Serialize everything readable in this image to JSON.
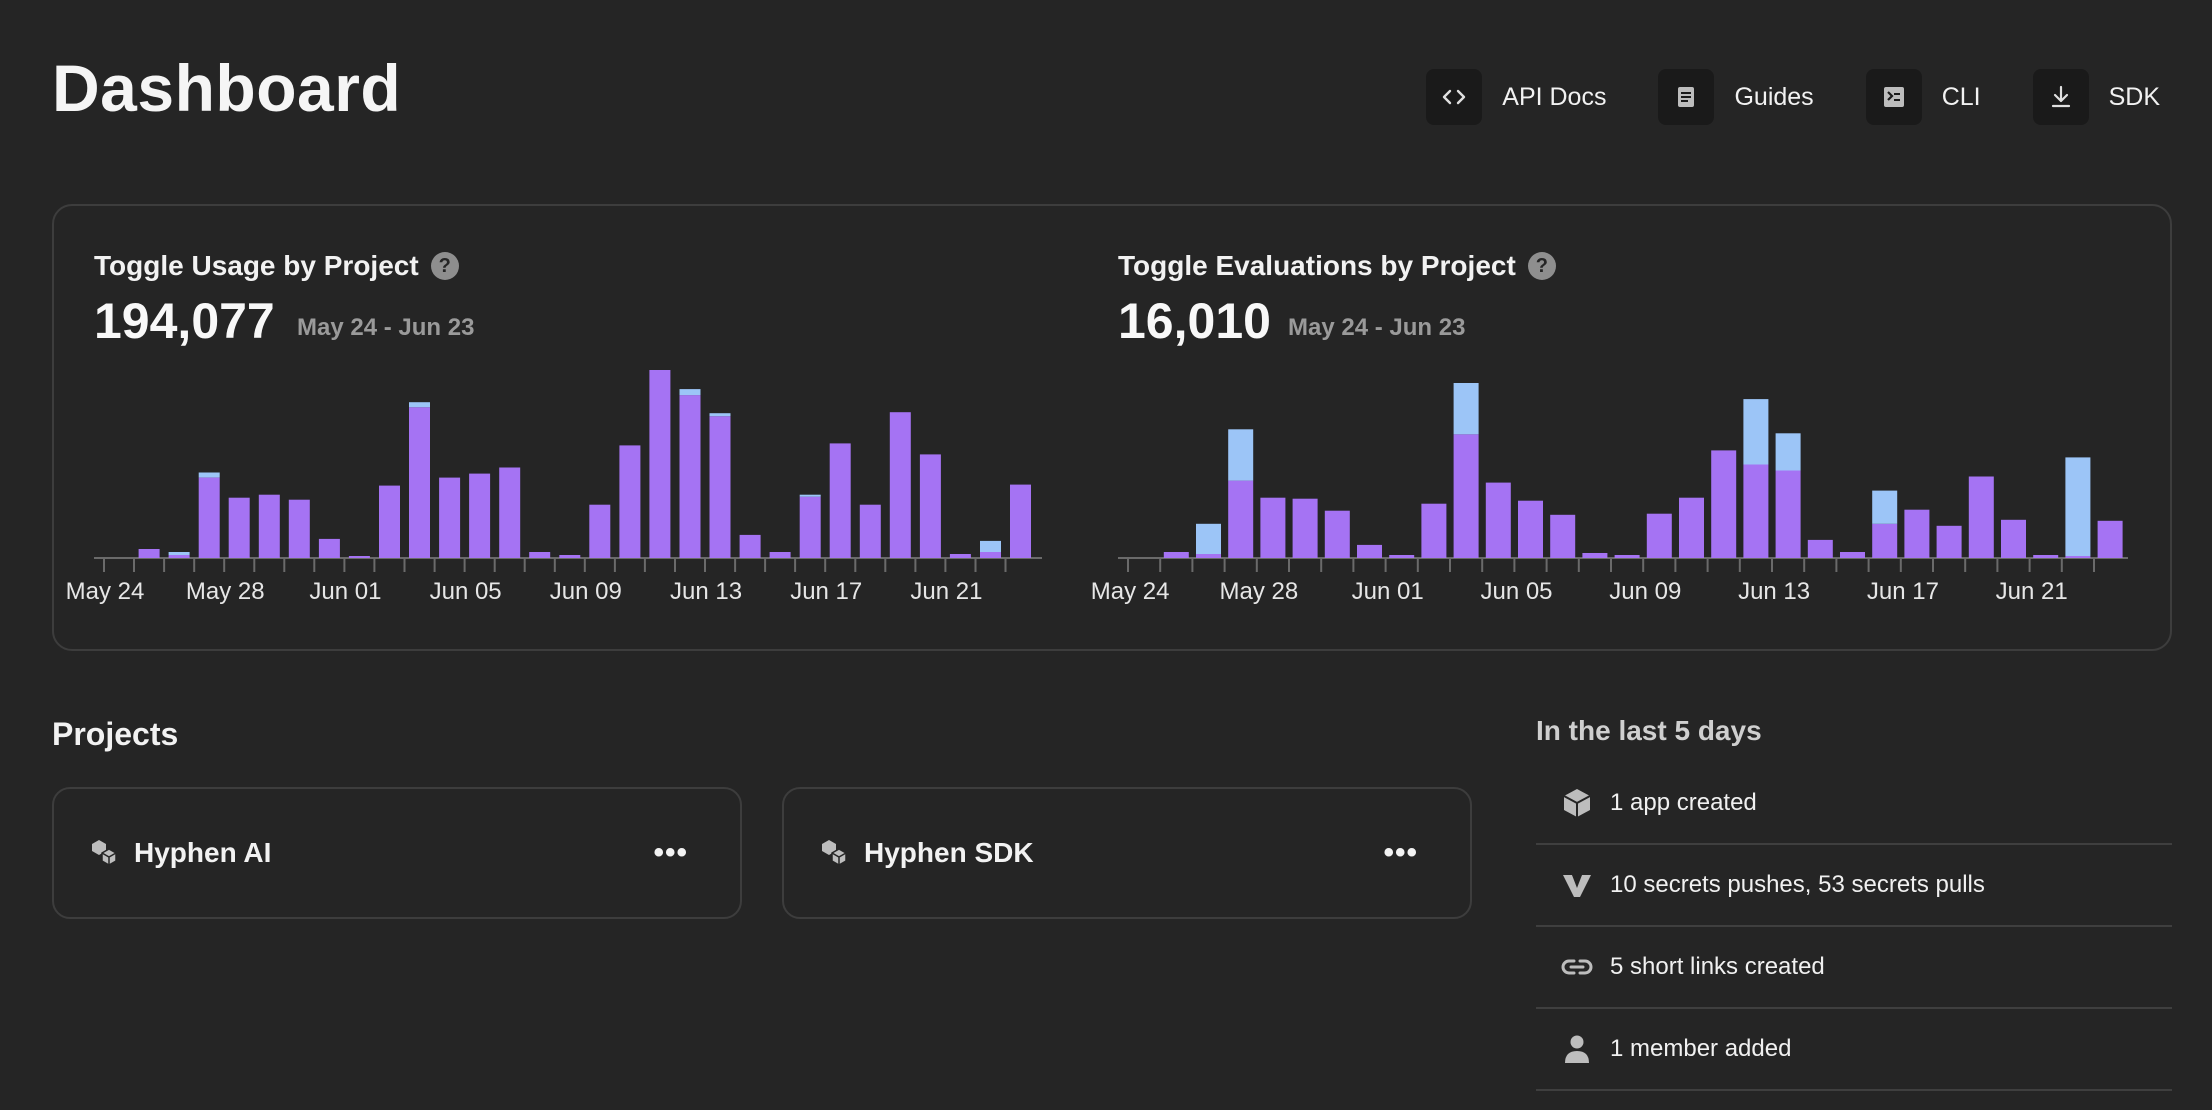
{
  "page": {
    "title": "Dashboard"
  },
  "top_links": [
    {
      "label": "API Docs",
      "icon": "code-icon"
    },
    {
      "label": "Guides",
      "icon": "document-icon"
    },
    {
      "label": "CLI",
      "icon": "terminal-icon"
    },
    {
      "label": "SDK",
      "icon": "download-icon"
    }
  ],
  "colors": {
    "primary_series": "#a573f3",
    "secondary_series": "#9cc5f7",
    "background": "#252525"
  },
  "chart_data": [
    {
      "type": "bar",
      "title": "Toggle Usage by Project",
      "total": "194,077",
      "date_range": "May 24 - Jun 23",
      "tick_labels": [
        "May 24",
        "May 28",
        "Jun 01",
        "Jun 05",
        "Jun 09",
        "Jun 13",
        "Jun 17",
        "Jun 21"
      ],
      "stacked": true,
      "series": [
        {
          "values": [
            0,
            9,
            3,
            80,
            60,
            63,
            58,
            19,
            2,
            72,
            150,
            80,
            84,
            90,
            6,
            3,
            53,
            112,
            187,
            162,
            141,
            23,
            6,
            61,
            114,
            53,
            145,
            103,
            4,
            6,
            73
          ]
        },
        {
          "values": [
            0,
            0,
            3,
            5,
            0,
            0,
            0,
            0,
            0,
            0,
            5,
            0,
            0,
            0,
            0,
            0,
            0,
            0,
            0,
            6,
            3,
            0,
            0,
            2,
            0,
            0,
            0,
            0,
            0,
            11,
            0
          ]
        }
      ]
    },
    {
      "type": "bar",
      "title": "Toggle Evaluations by Project",
      "total": "16,010",
      "date_range": "May 24 - Jun 23",
      "tick_labels": [
        "May 24",
        "May 28",
        "Jun 01",
        "Jun 05",
        "Jun 09",
        "Jun 13",
        "Jun 17",
        "Jun 21"
      ],
      "stacked": true,
      "series": [
        {
          "values": [
            0,
            6,
            4,
            77,
            60,
            59,
            47,
            13,
            3,
            54,
            123,
            75,
            57,
            43,
            5,
            3,
            44,
            60,
            107,
            93,
            87,
            18,
            6,
            34,
            48,
            32,
            81,
            38,
            3,
            2,
            37
          ]
        },
        {
          "values": [
            0,
            0,
            30,
            51,
            0,
            0,
            0,
            0,
            0,
            0,
            51,
            0,
            0,
            0,
            0,
            0,
            0,
            0,
            0,
            65,
            37,
            0,
            0,
            33,
            0,
            0,
            0,
            0,
            0,
            98,
            0
          ]
        }
      ]
    }
  ],
  "projects_section": {
    "title": "Projects",
    "items": [
      {
        "name": "Hyphen AI",
        "more": "•••"
      },
      {
        "name": "Hyphen SDK",
        "more": "•••"
      }
    ]
  },
  "activity": {
    "title": "In the last 5 days",
    "items": [
      {
        "text": "1 app created",
        "icon": "cube-icon"
      },
      {
        "text": "10 secrets pushes, 53 secrets pulls",
        "icon": "secrets-icon"
      },
      {
        "text": "5 short links created",
        "icon": "link-icon"
      },
      {
        "text": "1 member added",
        "icon": "person-icon"
      }
    ]
  }
}
